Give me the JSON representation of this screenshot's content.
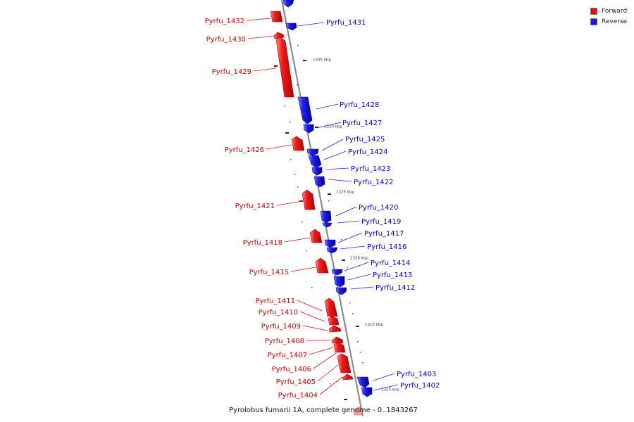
{
  "legend": {
    "items": [
      {
        "label": "Forward",
        "color": "#ff0000"
      },
      {
        "label": "Reverse",
        "color": "#1414ff"
      }
    ]
  },
  "caption": "Pyrolobus fumarii 1A, complete genome - 0..1843267",
  "colors": {
    "forward": "#ee1c1c",
    "reverse": "#1f1fe6",
    "backbone": "#8c8c8c",
    "forward_label": "#cc0000",
    "reverse_label": "#0000cc"
  },
  "ticks": [
    "1335 kbp",
    "1330 kbp",
    "1325 kbp",
    "1320 kbp",
    "1315 kbp",
    "1310 kbp"
  ],
  "genes": {
    "forward": [
      "Pyrfu_1432",
      "Pyrfu_1430",
      "Pyrfu_1429",
      "Pyrfu_1426",
      "Pyrfu_1421",
      "Pyrfu_1418",
      "Pyrfu_1415",
      "Pyrfu_1411",
      "Pyrfu_1410",
      "Pyrfu_1409",
      "Pyrfu_1408",
      "Pyrfu_1407",
      "Pyrfu_1406",
      "Pyrfu_1405",
      "Pyrfu_1404"
    ],
    "reverse": [
      "Pyrfu_1431",
      "Pyrfu_1428",
      "Pyrfu_1427",
      "Pyrfu_1425",
      "Pyrfu_1424",
      "Pyrfu_1423",
      "Pyrfu_1422",
      "Pyrfu_1420",
      "Pyrfu_1419",
      "Pyrfu_1417",
      "Pyrfu_1416",
      "Pyrfu_1414",
      "Pyrfu_1413",
      "Pyrfu_1412",
      "Pyrfu_1403",
      "Pyrfu_1402"
    ]
  }
}
